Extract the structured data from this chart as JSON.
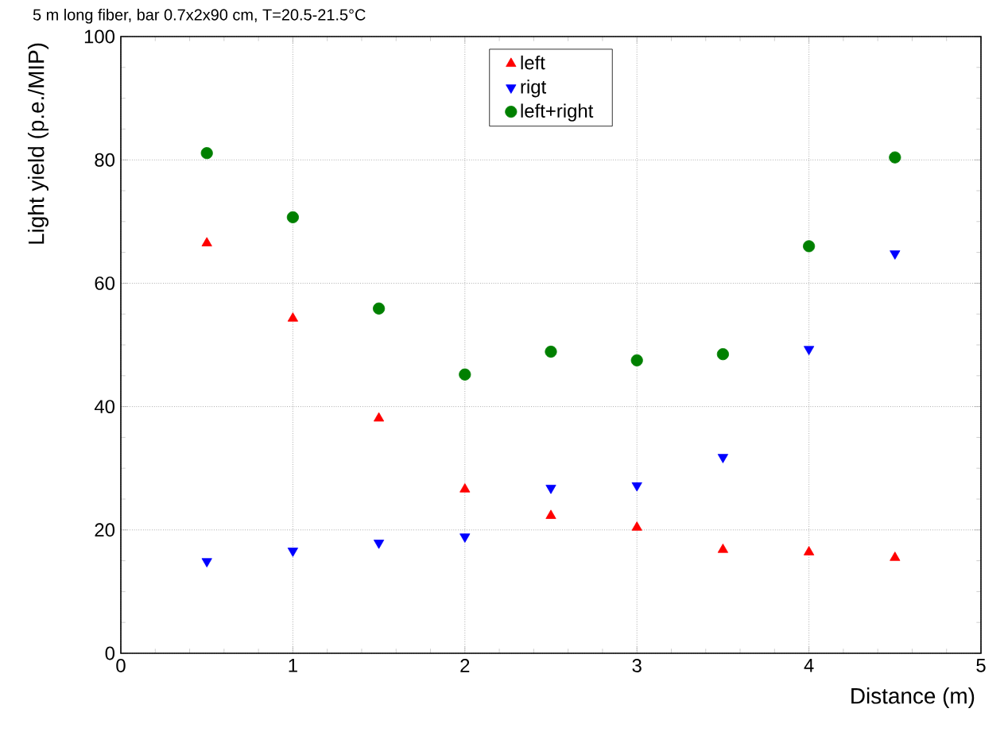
{
  "chart_data": {
    "type": "scatter",
    "title": "5 m long fiber, bar 0.7x2x90 cm, T=20.5-21.5°C",
    "xlabel": "Distance (m)",
    "ylabel": "Light yield (p.e./MIP)",
    "x": [
      0.5,
      1,
      1.5,
      2,
      2.5,
      3,
      3.5,
      4,
      4.5
    ],
    "series": [
      {
        "name": "left",
        "color": "#ff0000",
        "marker": "triangle",
        "values": [
          66.5,
          54.3,
          38.1,
          26.6,
          22.3,
          20.4,
          16.8,
          16.4,
          15.5
        ]
      },
      {
        "name": "rigt",
        "color": "#0000ff",
        "marker": "triangle-down",
        "values": [
          14.9,
          16.6,
          17.9,
          18.9,
          26.8,
          27.2,
          31.8,
          49.3,
          64.8
        ]
      },
      {
        "name": "left+right",
        "color": "#008000",
        "marker": "circle",
        "values": [
          81.1,
          70.7,
          55.9,
          45.2,
          48.9,
          47.5,
          48.5,
          66.0,
          80.4
        ]
      }
    ],
    "xlim": [
      0,
      5
    ],
    "ylim": [
      0,
      100
    ],
    "xticks": [
      0,
      1,
      2,
      3,
      4,
      5
    ],
    "yticks": [
      0,
      20,
      40,
      60,
      80,
      100
    ],
    "grid": true,
    "legend": "top"
  }
}
